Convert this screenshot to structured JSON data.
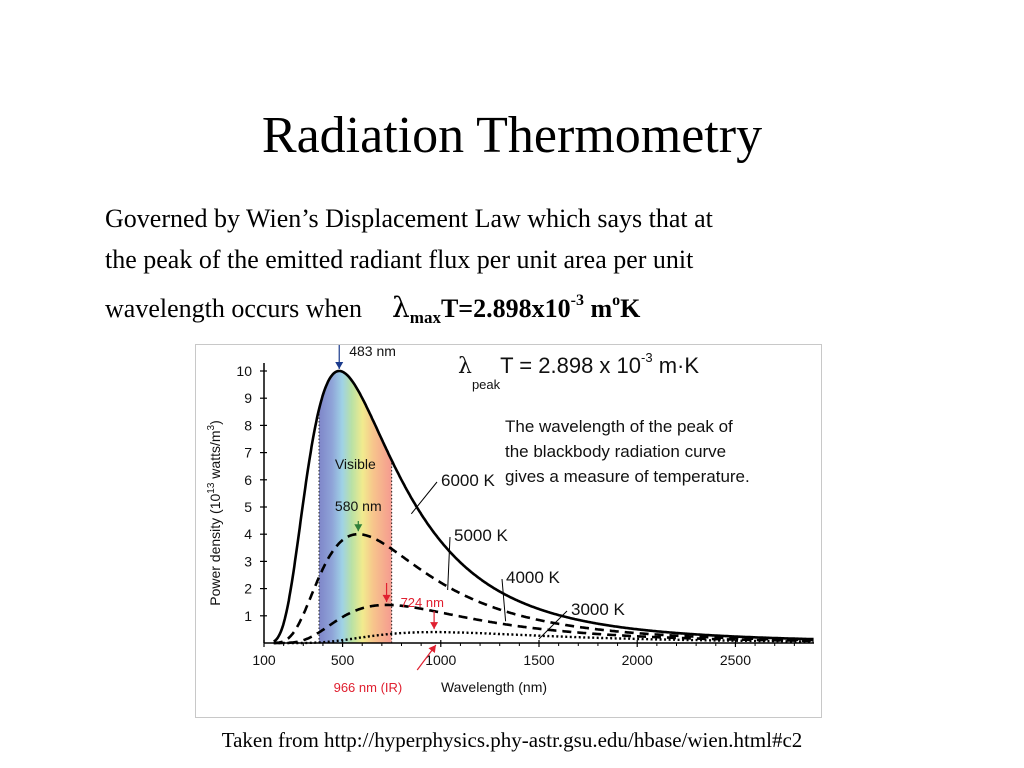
{
  "slide": {
    "title": "Radiation Thermometry",
    "body_line1": "Governed by Wien’s Displacement Law which says that at",
    "body_line2": "the peak of the emitted radiant flux per unit area per unit",
    "body_line3": "wavelength occurs when",
    "formula": {
      "lambda": "λ",
      "sub": "max",
      "main": "T=2.898x10",
      "exp": "-3",
      "unit": " m",
      "unit_sup": "o",
      "unit_end": "K"
    },
    "source": "Taken from http://hyperphysics.phy-astr.gsu.edu/hbase/wien.html#c2"
  },
  "chart_data": {
    "type": "line",
    "xlabel": "Wavelength (nm)",
    "ylabel": "Power density (10",
    "ylabel_sup": "13",
    "ylabel_mid": " watts/m",
    "ylabel_sup2": "3",
    "ylabel_end": ")",
    "xlim": [
      100,
      2900
    ],
    "ylim": [
      0,
      10
    ],
    "x_ticks": [
      100,
      500,
      1000,
      1500,
      2000,
      2500
    ],
    "y_ticks": [
      1,
      2,
      3,
      4,
      5,
      6,
      7,
      8,
      9,
      10
    ],
    "formula": {
      "lambda": "λ",
      "sub": "peak",
      "main": "T = 2.898  x 10",
      "exp": "-3",
      "unit": " m·K"
    },
    "description": [
      "The wavelength of the peak of",
      "the blackbody radiation curve",
      "gives a measure of temperature."
    ],
    "visible_band": {
      "label": "Visible",
      "range": [
        380,
        750
      ]
    },
    "series": [
      {
        "name": "6000 K",
        "temperature": 6000,
        "peak_nm": 483,
        "peak_value": 10.0,
        "peak_label": "483 nm",
        "style": "solid"
      },
      {
        "name": "5000 K",
        "temperature": 5000,
        "peak_nm": 580,
        "peak_value": 4.0,
        "peak_label": "580 nm",
        "style": "dashed"
      },
      {
        "name": "4000 K",
        "temperature": 4000,
        "peak_nm": 724,
        "peak_value": 1.4,
        "peak_label": "724 nm",
        "style": "dashed"
      },
      {
        "name": "3000 K",
        "temperature": 3000,
        "peak_nm": 966,
        "peak_value": 0.4,
        "peak_label": "966 nm (IR)",
        "style": "dotted"
      }
    ],
    "colors": {
      "axis": "#000000",
      "label_6000": "#1a3a8c",
      "label_5000": "#2f7f3a",
      "label_ir": "#e02030",
      "curve": "#000000"
    }
  }
}
